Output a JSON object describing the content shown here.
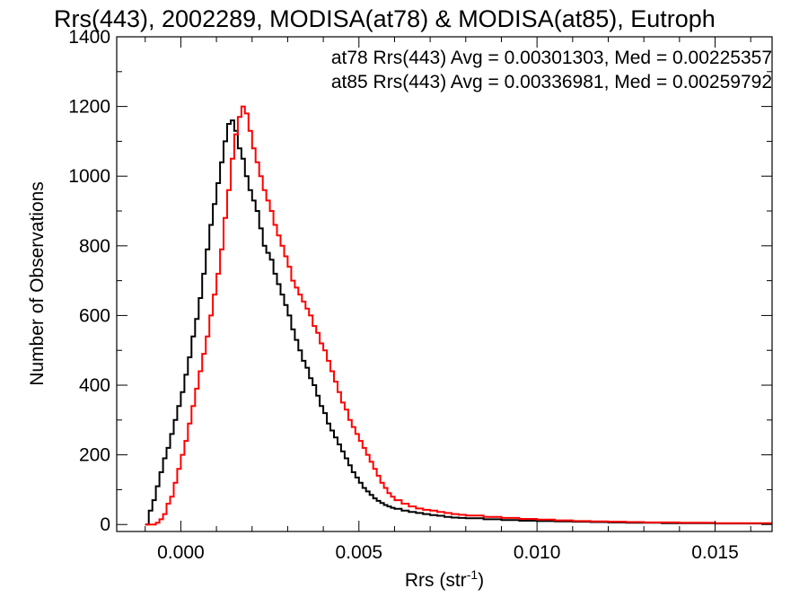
{
  "chart_data": {
    "type": "line",
    "title": "Rrs(443), 2002289, MODISA(at78) & MODISA(at85), Eutroph",
    "xlabel": "Rrs (str",
    "xlabel_sup": "-1",
    "xlabel_end": ")",
    "ylabel": "Number of Observations",
    "xlim": [
      -0.0018,
      0.0166
    ],
    "ylim": [
      -20,
      1400
    ],
    "x_ticks": [
      0.0,
      0.005,
      0.01,
      0.015
    ],
    "x_tick_labels": [
      "0.000",
      "0.005",
      "0.010",
      "0.015"
    ],
    "y_ticks": [
      0,
      200,
      400,
      600,
      800,
      1000,
      1200,
      1400
    ],
    "y_tick_labels": [
      "0",
      "200",
      "400",
      "600",
      "800",
      "1000",
      "1200",
      "1400"
    ],
    "grid": false,
    "stepped": true,
    "annotations": [
      {
        "text": "at78 Rrs(443) Avg = 0.00301303, Med = 0.00225357",
        "color": "#000000"
      },
      {
        "text": "at85 Rrs(443) Avg = 0.00336981, Med = 0.00259792",
        "color": "#ff0000"
      }
    ],
    "series": [
      {
        "color": "#000000",
        "x": [
          -0.001,
          -0.0009,
          -0.0008,
          -0.0007,
          -0.0006,
          -0.0005,
          -0.0004,
          -0.0003,
          -0.0002,
          -0.0001,
          0.0,
          0.0001,
          0.0002,
          0.0003,
          0.0004,
          0.0005,
          0.0006,
          0.0007,
          0.0008,
          0.0009,
          0.001,
          0.0011,
          0.0012,
          0.0013,
          0.0014,
          0.0015,
          0.0016,
          0.0017,
          0.0018,
          0.0019,
          0.002,
          0.0021,
          0.0022,
          0.0023,
          0.0024,
          0.0025,
          0.0026,
          0.0027,
          0.0028,
          0.0029,
          0.003,
          0.0031,
          0.0032,
          0.0033,
          0.0034,
          0.0035,
          0.0036,
          0.0037,
          0.0038,
          0.0039,
          0.004,
          0.0041,
          0.0042,
          0.0043,
          0.0044,
          0.0045,
          0.0046,
          0.0047,
          0.0048,
          0.0049,
          0.005,
          0.0051,
          0.0052,
          0.0053,
          0.0054,
          0.0055,
          0.0056,
          0.0057,
          0.0058,
          0.0059,
          0.006,
          0.0062,
          0.0064,
          0.0066,
          0.0068,
          0.007,
          0.0072,
          0.0074,
          0.0076,
          0.0078,
          0.008,
          0.0085,
          0.009,
          0.0095,
          0.01,
          0.0105,
          0.011,
          0.0115,
          0.012,
          0.0125,
          0.013,
          0.0135,
          0.014,
          0.0145,
          0.015,
          0.0155,
          0.016,
          0.0165
        ],
        "y": [
          0,
          40,
          70,
          110,
          150,
          190,
          220,
          260,
          300,
          340,
          380,
          430,
          480,
          540,
          590,
          650,
          720,
          790,
          860,
          920,
          980,
          1040,
          1100,
          1150,
          1160,
          1130,
          1080,
          1050,
          1000,
          960,
          930,
          900,
          850,
          800,
          780,
          760,
          720,
          690,
          660,
          630,
          600,
          560,
          530,
          500,
          470,
          450,
          420,
          400,
          370,
          340,
          320,
          290,
          270,
          250,
          230,
          210,
          190,
          170,
          150,
          135,
          120,
          105,
          95,
          85,
          75,
          68,
          62,
          56,
          52,
          48,
          45,
          40,
          36,
          33,
          30,
          27,
          25,
          22,
          20,
          19,
          18,
          15,
          13,
          11,
          10,
          9,
          8,
          7,
          6,
          5,
          5,
          4,
          4,
          4,
          3,
          3,
          3,
          3
        ]
      },
      {
        "color": "#ff0000",
        "x": [
          -0.001,
          -0.0009,
          -0.0008,
          -0.0007,
          -0.0006,
          -0.0005,
          -0.0004,
          -0.0003,
          -0.0002,
          -0.0001,
          0.0,
          0.0001,
          0.0002,
          0.0003,
          0.0004,
          0.0005,
          0.0006,
          0.0007,
          0.0008,
          0.0009,
          0.001,
          0.0011,
          0.0012,
          0.0013,
          0.0014,
          0.0015,
          0.0016,
          0.0017,
          0.0018,
          0.0019,
          0.002,
          0.0021,
          0.0022,
          0.0023,
          0.0024,
          0.0025,
          0.0026,
          0.0027,
          0.0028,
          0.0029,
          0.003,
          0.0031,
          0.0032,
          0.0033,
          0.0034,
          0.0035,
          0.0036,
          0.0037,
          0.0038,
          0.0039,
          0.004,
          0.0041,
          0.0042,
          0.0043,
          0.0044,
          0.0045,
          0.0046,
          0.0047,
          0.0048,
          0.0049,
          0.005,
          0.0051,
          0.0052,
          0.0053,
          0.0054,
          0.0055,
          0.0056,
          0.0057,
          0.0058,
          0.0059,
          0.006,
          0.0062,
          0.0064,
          0.0066,
          0.0068,
          0.007,
          0.0072,
          0.0074,
          0.0076,
          0.0078,
          0.008,
          0.0085,
          0.009,
          0.0095,
          0.01,
          0.0105,
          0.011,
          0.0115,
          0.012,
          0.0125,
          0.013,
          0.0135,
          0.014,
          0.0145,
          0.015,
          0.0155,
          0.016,
          0.0165
        ],
        "y": [
          0,
          0,
          0,
          5,
          15,
          30,
          60,
          80,
          120,
          160,
          200,
          240,
          290,
          340,
          390,
          440,
          490,
          540,
          600,
          660,
          720,
          790,
          880,
          960,
          1050,
          1120,
          1170,
          1200,
          1180,
          1130,
          1080,
          1040,
          1000,
          960,
          930,
          900,
          860,
          830,
          800,
          770,
          740,
          700,
          680,
          660,
          640,
          620,
          600,
          570,
          550,
          520,
          500,
          470,
          440,
          410,
          380,
          350,
          330,
          300,
          280,
          260,
          240,
          220,
          200,
          180,
          160,
          140,
          120,
          105,
          90,
          80,
          70,
          60,
          52,
          46,
          42,
          40,
          36,
          33,
          30,
          28,
          26,
          22,
          19,
          16,
          14,
          12,
          10,
          9,
          8,
          7,
          6,
          6,
          5,
          5,
          4,
          4,
          4,
          4
        ]
      }
    ]
  }
}
